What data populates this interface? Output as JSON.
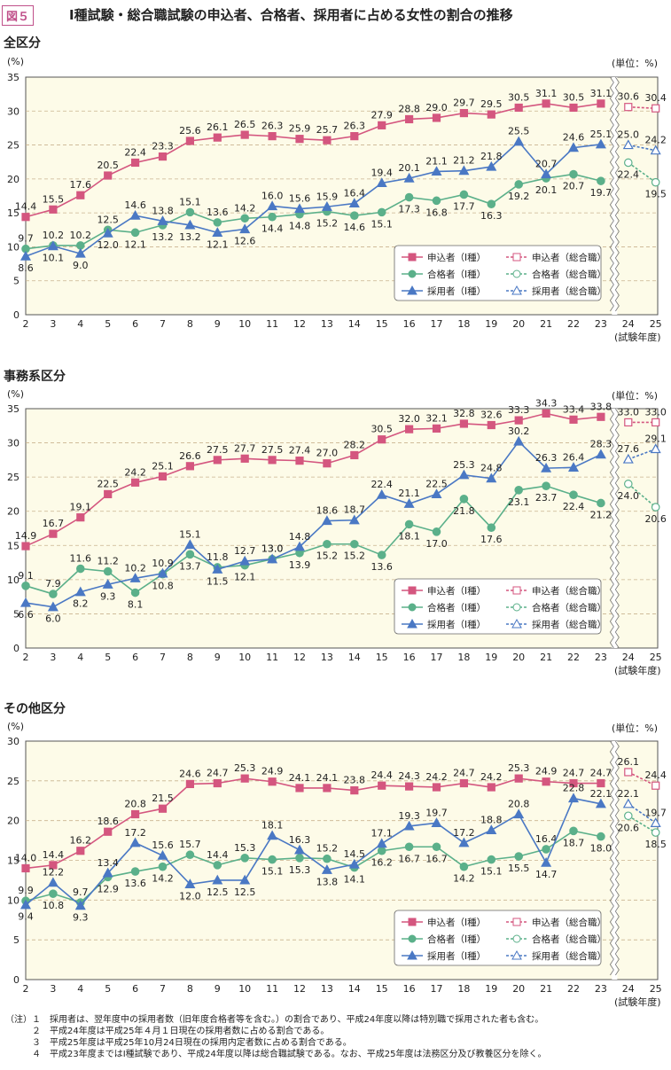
{
  "figure_label": "図５",
  "title": "Ⅰ種試験・総合職試験の申込者、合格者、採用者に占める女性の割合の推移",
  "colors": {
    "applicants": "#d4567f",
    "passers": "#5bb08a",
    "hires": "#4a78c4",
    "plot_bg": "#fdfbe8",
    "grid": "#c9b38f"
  },
  "legend": [
    "申込者（Ⅰ種）",
    "申込者（総合職）",
    "合格者（Ⅰ種）",
    "合格者（総合職）",
    "採用者（Ⅰ種）",
    "採用者（総合職）"
  ],
  "chart_data": [
    {
      "type": "line",
      "title": "全区分",
      "ylabel": "(%)",
      "unit": "(単位：%)",
      "xlabel": "(試験年度)",
      "ylim": [
        0,
        35
      ],
      "yticks": [
        0,
        5,
        10,
        15,
        20,
        25,
        30,
        35
      ],
      "grid": true,
      "legend_position": "bottom-right",
      "categories": [
        2,
        3,
        4,
        5,
        6,
        7,
        8,
        9,
        10,
        11,
        12,
        13,
        14,
        15,
        16,
        17,
        18,
        19,
        20,
        21,
        22,
        23,
        24,
        25
      ],
      "series": [
        {
          "name": "申込者（Ⅰ種）",
          "x": [
            2,
            3,
            4,
            5,
            6,
            7,
            8,
            9,
            10,
            11,
            12,
            13,
            14,
            15,
            16,
            17,
            18,
            19,
            20,
            21,
            22,
            23
          ],
          "values": [
            14.4,
            15.5,
            17.6,
            20.5,
            22.4,
            23.3,
            25.6,
            26.1,
            26.5,
            26.3,
            25.9,
            25.7,
            26.3,
            27.9,
            28.8,
            29.0,
            29.7,
            29.5,
            30.5,
            31.1,
            30.5,
            31.1
          ]
        },
        {
          "name": "合格者（Ⅰ種）",
          "x": [
            2,
            3,
            4,
            5,
            6,
            7,
            8,
            9,
            10,
            11,
            12,
            13,
            14,
            15,
            16,
            17,
            18,
            19,
            20,
            21,
            22,
            23
          ],
          "values": [
            9.7,
            10.2,
            10.2,
            12.5,
            12.1,
            13.2,
            15.1,
            13.6,
            14.2,
            14.4,
            14.8,
            15.2,
            14.6,
            15.1,
            17.3,
            16.8,
            17.7,
            16.3,
            19.2,
            20.1,
            20.7,
            19.7
          ]
        },
        {
          "name": "採用者（Ⅰ種）",
          "x": [
            2,
            3,
            4,
            5,
            6,
            7,
            8,
            9,
            10,
            11,
            12,
            13,
            14,
            15,
            16,
            17,
            18,
            19,
            20,
            21,
            22,
            23
          ],
          "values": [
            8.6,
            10.1,
            9.0,
            12.0,
            14.6,
            13.8,
            13.2,
            12.1,
            12.6,
            16.0,
            15.6,
            15.9,
            16.4,
            19.4,
            20.1,
            21.1,
            21.2,
            21.8,
            25.5,
            20.7,
            24.6,
            25.1
          ]
        },
        {
          "name": "申込者（総合職）",
          "x": [
            24,
            25
          ],
          "values": [
            30.6,
            30.4
          ]
        },
        {
          "name": "合格者（総合職）",
          "x": [
            24,
            25
          ],
          "values": [
            22.4,
            19.5
          ]
        },
        {
          "name": "採用者（総合職）",
          "x": [
            24,
            25
          ],
          "values": [
            25.0,
            24.2
          ]
        }
      ]
    },
    {
      "type": "line",
      "title": "事務系区分",
      "ylabel": "(%)",
      "unit": "(単位：%)",
      "xlabel": "(試験年度)",
      "ylim": [
        0,
        35
      ],
      "yticks": [
        0,
        5,
        10,
        15,
        20,
        25,
        30,
        35
      ],
      "grid": true,
      "legend_position": "bottom-right",
      "categories": [
        2,
        3,
        4,
        5,
        6,
        7,
        8,
        9,
        10,
        11,
        12,
        13,
        14,
        15,
        16,
        17,
        18,
        19,
        20,
        21,
        22,
        23,
        24,
        25
      ],
      "series": [
        {
          "name": "申込者（Ⅰ種）",
          "x": [
            2,
            3,
            4,
            5,
            6,
            7,
            8,
            9,
            10,
            11,
            12,
            13,
            14,
            15,
            16,
            17,
            18,
            19,
            20,
            21,
            22,
            23
          ],
          "values": [
            14.9,
            16.7,
            19.1,
            22.5,
            24.2,
            25.1,
            26.6,
            27.5,
            27.7,
            27.5,
            27.4,
            27.0,
            28.2,
            30.5,
            32.0,
            32.1,
            32.8,
            32.6,
            33.3,
            34.3,
            33.4,
            33.8
          ]
        },
        {
          "name": "合格者（Ⅰ種）",
          "x": [
            2,
            3,
            4,
            5,
            6,
            7,
            8,
            9,
            10,
            11,
            12,
            13,
            14,
            15,
            16,
            17,
            18,
            19,
            20,
            21,
            22,
            23
          ],
          "values": [
            9.1,
            7.9,
            11.6,
            11.2,
            8.1,
            10.8,
            13.7,
            11.8,
            12.1,
            13.0,
            13.9,
            15.2,
            15.2,
            13.6,
            18.1,
            17.0,
            21.8,
            17.6,
            23.1,
            23.7,
            22.4,
            21.2
          ]
        },
        {
          "name": "採用者（Ⅰ種）",
          "x": [
            2,
            3,
            4,
            5,
            6,
            7,
            8,
            9,
            10,
            11,
            12,
            13,
            14,
            15,
            16,
            17,
            18,
            19,
            20,
            21,
            22,
            23
          ],
          "values": [
            6.6,
            6.0,
            8.2,
            9.3,
            10.2,
            10.9,
            15.1,
            11.5,
            12.7,
            13.0,
            14.8,
            18.6,
            18.7,
            22.4,
            21.1,
            22.5,
            25.3,
            24.8,
            30.2,
            26.3,
            26.4,
            28.3
          ]
        },
        {
          "name": "申込者（総合職）",
          "x": [
            24,
            25
          ],
          "values": [
            33.0,
            33.0
          ]
        },
        {
          "name": "合格者（総合職）",
          "x": [
            24,
            25
          ],
          "values": [
            24.0,
            20.6
          ]
        },
        {
          "name": "採用者（総合職）",
          "x": [
            24,
            25
          ],
          "values": [
            27.6,
            29.1
          ]
        }
      ]
    },
    {
      "type": "line",
      "title": "その他区分",
      "ylabel": "(%)",
      "unit": "(単位：%)",
      "xlabel": "(試験年度)",
      "ylim": [
        0,
        30
      ],
      "yticks": [
        0,
        5,
        10,
        15,
        20,
        25,
        30
      ],
      "grid": true,
      "legend_position": "bottom-right",
      "categories": [
        2,
        3,
        4,
        5,
        6,
        7,
        8,
        9,
        10,
        11,
        12,
        13,
        14,
        15,
        16,
        17,
        18,
        19,
        20,
        21,
        22,
        23,
        24,
        25
      ],
      "series": [
        {
          "name": "申込者（Ⅰ種）",
          "x": [
            2,
            3,
            4,
            5,
            6,
            7,
            8,
            9,
            10,
            11,
            12,
            13,
            14,
            15,
            16,
            17,
            18,
            19,
            20,
            21,
            22,
            23
          ],
          "values": [
            14.0,
            14.4,
            16.2,
            18.6,
            20.8,
            21.5,
            24.6,
            24.7,
            25.3,
            24.9,
            24.1,
            24.1,
            23.8,
            24.4,
            24.3,
            24.2,
            24.7,
            24.2,
            25.3,
            24.9,
            24.7,
            24.7
          ]
        },
        {
          "name": "合格者（Ⅰ種）",
          "x": [
            2,
            3,
            4,
            5,
            6,
            7,
            8,
            9,
            10,
            11,
            12,
            13,
            14,
            15,
            16,
            17,
            18,
            19,
            20,
            21,
            22,
            23
          ],
          "values": [
            9.9,
            10.8,
            9.7,
            12.9,
            13.6,
            14.2,
            15.7,
            14.4,
            15.3,
            15.1,
            15.3,
            15.2,
            14.1,
            16.2,
            16.7,
            16.7,
            14.2,
            15.1,
            15.5,
            16.4,
            18.7,
            18.0
          ]
        },
        {
          "name": "採用者（Ⅰ種）",
          "x": [
            2,
            3,
            4,
            5,
            6,
            7,
            8,
            9,
            10,
            11,
            12,
            13,
            14,
            15,
            16,
            17,
            18,
            19,
            20,
            21,
            22,
            23
          ],
          "values": [
            9.4,
            12.2,
            9.3,
            13.4,
            17.2,
            15.6,
            12.0,
            12.5,
            12.5,
            18.1,
            16.3,
            13.8,
            14.5,
            17.1,
            19.3,
            19.7,
            17.2,
            18.8,
            20.8,
            14.7,
            22.8,
            22.1
          ]
        },
        {
          "name": "申込者（総合職）",
          "x": [
            24,
            25
          ],
          "values": [
            26.1,
            24.4
          ]
        },
        {
          "name": "合格者（総合職）",
          "x": [
            24,
            25
          ],
          "values": [
            20.6,
            18.5
          ]
        },
        {
          "name": "採用者（総合職）",
          "x": [
            24,
            25
          ],
          "values": [
            22.1,
            19.7
          ]
        }
      ]
    }
  ],
  "notes": [
    "（注）１　採用者は、翌年度中の採用者数（旧年度合格者等を含む。）の割合であり、平成24年度以降は特別職で採用された者も含む。",
    "　　　２　平成24年度は平成25年４月１日現在の採用者数に占める割合である。",
    "　　　３　平成25年度は平成25年10月24日現在の採用内定者数に占める割合である。",
    "　　　４　平成23年度まではⅠ種試験であり、平成24年度以降は総合職試験である。なお、平成25年度は法務区分及び教養区分を除く。"
  ]
}
